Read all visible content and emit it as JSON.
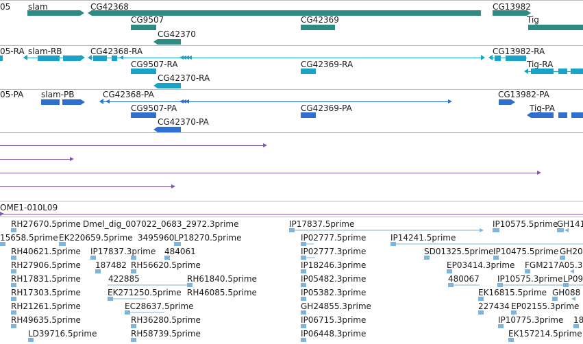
{
  "colors": {
    "gene": "#2e8b84",
    "transcript": "#1aa3c6",
    "protein": "#2e6fd0",
    "read": "#7c5aa8",
    "est": "#7fb4dc",
    "separator": "#b9b9b9"
  },
  "tracks": {
    "genes": {
      "labels": [
        "05",
        "slam",
        "CG42368",
        "CG9507",
        "CG42370",
        "CG42369",
        "CG13982",
        "Tig"
      ]
    },
    "transcripts": {
      "labels": [
        "05-RA",
        "slam-RB",
        "CG42368-RA",
        "CG9507-RA",
        "CG42370-RA",
        "CG42369-RA",
        "CG13982-RA",
        "Tig-RA"
      ]
    },
    "proteins": {
      "labels": [
        "05-PA",
        "slam-PB",
        "CG42368-PA",
        "CG9507-PA",
        "CG42370-PA",
        "CG42369-PA",
        "CG13982-PA",
        "Tig-PA"
      ]
    },
    "clone": {
      "label": "OME1-010L09"
    },
    "est_reads": {
      "labels": [
        "RH27670.5prime",
        "Dmel_dig_007022_0683_2972.3prime",
        "IP17837.5prime",
        "IP10575.5prime",
        "GH141",
        "15658.5prime",
        "EK220659.5prime",
        "3495960",
        "LP18270.5prime",
        "IP02777.5prime",
        "IP14241.5prime",
        "RH40621.5prime",
        "IP17837.3prime",
        "484061",
        "IP02777.3prime",
        "SD01325.5prime",
        "IP10475.5prime",
        "GH20",
        "RH27906.5prime",
        "187482",
        "RH56620.5prime",
        "IP18246.3prime",
        "EP03414.3prime",
        "FGM217A05.3",
        "RH17831.5prime",
        "422885",
        "RH61840.5prime",
        "IP05482.3prime",
        "480067",
        "IP10575.3prime",
        "LP09",
        "RH17303.5prime",
        "EK271250.5prime",
        "RH46085.5prime",
        "IP05382.3prime",
        "EK16815.5prime",
        "GH088",
        "RH21261.5prime",
        "EC28637.5prime",
        "GH24855.3prime",
        "227434",
        "EP02155.3prime",
        "RH49635.5prime",
        "RH36280.5prime",
        "IP06715.3prime",
        "IP10775.3prime",
        "18",
        "LD39716.5prime",
        "RH58739.5prime",
        "IP06448.3prime",
        "EK157214.5prime"
      ]
    }
  }
}
